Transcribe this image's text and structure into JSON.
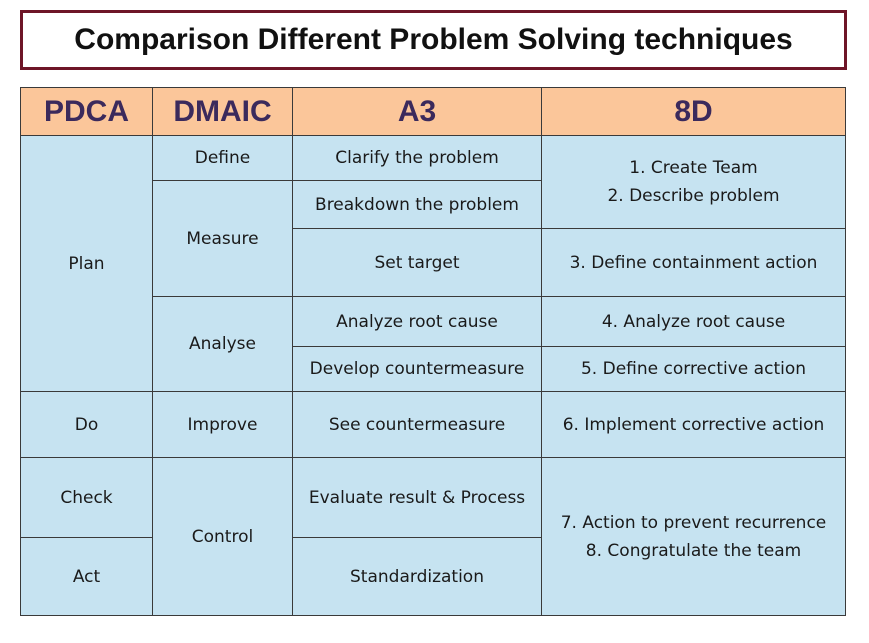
{
  "title": "Comparison Different Problem Solving techniques",
  "table": {
    "header": [
      "PDCA",
      "DMAIC",
      "A3",
      "8D"
    ],
    "pdca": [
      "Plan",
      "Do",
      "Check",
      "Act"
    ],
    "dmaic": [
      "Define",
      "Measure",
      "Analyse",
      "Improve",
      "Control"
    ],
    "a3": [
      "Clarify the problem",
      "Breakdown the problem",
      "Set target",
      "Analyze root cause",
      "Develop countermeasure",
      "See countermeasure",
      "Evaluate result & Process",
      "Standardization"
    ],
    "d8": [
      [
        "1. Create Team",
        "2. Describe problem"
      ],
      [
        "3. Define containment action"
      ],
      [
        "4. Analyze root cause"
      ],
      [
        "5. Define corrective action"
      ],
      [
        "6. Implement corrective action"
      ],
      [
        "7. Action to prevent recurrence",
        "8. Congratulate the team"
      ]
    ]
  }
}
